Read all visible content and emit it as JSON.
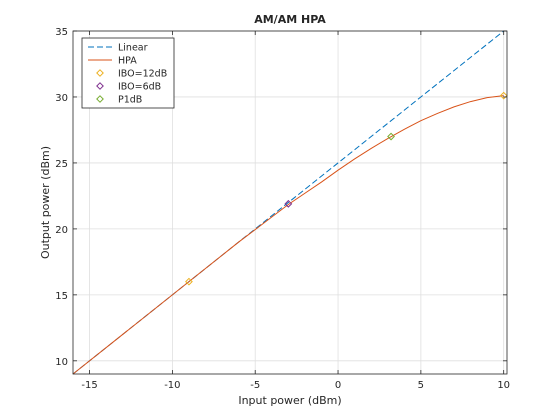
{
  "chart_data": {
    "type": "line",
    "title": "AM/AM HPA",
    "xlabel": "Input power (dBm)",
    "ylabel": "Output power (dBm)",
    "xlim": [
      -16,
      10.2
    ],
    "ylim": [
      9,
      35
    ],
    "xticks": [
      -15,
      -10,
      -5,
      0,
      5,
      10
    ],
    "yticks": [
      10,
      15,
      20,
      25,
      30,
      35
    ],
    "grid": true,
    "legend_position": "top-left",
    "series": [
      {
        "name": "Linear",
        "style": "dashed",
        "color": "#0072bd",
        "x": [
          -16,
          10
        ],
        "y": [
          9,
          35
        ]
      },
      {
        "name": "HPA",
        "style": "solid",
        "color": "#d95319",
        "x": [
          -16,
          -12,
          -9,
          -6,
          -4,
          -3,
          -2,
          -1,
          0,
          1,
          2,
          3,
          4,
          5,
          6,
          7,
          8,
          9,
          10
        ],
        "y": [
          9,
          13,
          16,
          19,
          20.9,
          21.85,
          22.7,
          23.55,
          24.45,
          25.3,
          26.1,
          26.85,
          27.55,
          28.2,
          28.75,
          29.25,
          29.65,
          29.95,
          30.1
        ]
      }
    ],
    "markers": [
      {
        "name": "IBO=12dB",
        "color": "#edb120",
        "x": [
          -9,
          10
        ],
        "y": [
          16,
          30.1
        ]
      },
      {
        "name": "IBO=6dB",
        "color": "#7e2f8e",
        "x": [
          -3
        ],
        "y": [
          21.9
        ]
      },
      {
        "name": "P1dB",
        "color": "#77ac30",
        "x": [
          3.2
        ],
        "y": [
          27.0
        ]
      }
    ]
  }
}
